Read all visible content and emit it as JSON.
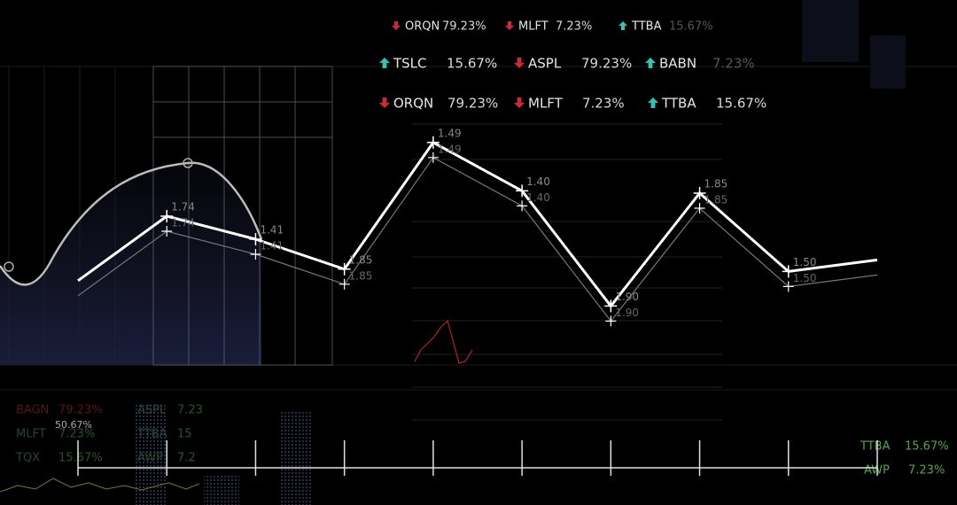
{
  "tickers": [
    [
      {
        "symbol": "ORQN",
        "change": "79.23%",
        "direction": "down"
      },
      {
        "symbol": "MLFT",
        "change": "7.23%",
        "direction": "down"
      },
      {
        "symbol": "TTBA",
        "change": "15.67%",
        "direction": "up"
      }
    ],
    [
      {
        "symbol": "TSLC",
        "change": "15.67%",
        "direction": "up"
      },
      {
        "symbol": "ASPL",
        "change": "79.23%",
        "direction": "down"
      },
      {
        "symbol": "BABN",
        "change": "7.23%",
        "direction": "up"
      }
    ],
    [
      {
        "symbol": "ORQN",
        "change": "79.23%",
        "direction": "down"
      },
      {
        "symbol": "MLFT",
        "change": "7.23%",
        "direction": "down"
      },
      {
        "symbol": "TTBA",
        "change": "15.67%",
        "direction": "up"
      }
    ]
  ],
  "bottom_left_tickers": [
    {
      "symbol": "BAGN",
      "change": "79.23%"
    },
    {
      "symbol": "MLFT",
      "change": "7.23%"
    },
    {
      "symbol": "TQX",
      "change": "15.67%"
    },
    {
      "symbol": "ASPL",
      "change": "7.23"
    },
    {
      "symbol": "TTBA",
      "change": "15"
    },
    {
      "symbol": "AWP",
      "change": "7.2"
    }
  ],
  "bottom_left_note": "50.67%",
  "bottom_right_tickers": [
    {
      "symbol": "TTBA",
      "change": "15.67%"
    },
    {
      "symbol": "AWP",
      "change": "7.23%"
    }
  ],
  "chart_data": {
    "type": "line",
    "categories": [
      null,
      null,
      null,
      null,
      null,
      null,
      null,
      null,
      null,
      null
    ],
    "values": [
      32,
      60,
      50,
      37,
      92,
      71,
      21,
      70,
      36,
      41
    ],
    "point_labels": [
      null,
      "1.74",
      "1.41",
      "1.85",
      "1.49",
      "1.40",
      "1.90",
      "1.85",
      "1.50",
      null
    ],
    "ylim": [
      0,
      100
    ],
    "color": "#ffffff"
  }
}
